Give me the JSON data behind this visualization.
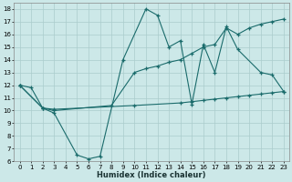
{
  "xlabel": "Humidex (Indice chaleur)",
  "bg_color": "#cce8e8",
  "grid_color": "#aacccc",
  "line_color": "#1a6b6b",
  "xlim": [
    -0.5,
    23.5
  ],
  "ylim": [
    6,
    18.5
  ],
  "xticks": [
    0,
    1,
    2,
    3,
    4,
    5,
    6,
    7,
    8,
    9,
    10,
    11,
    12,
    13,
    14,
    15,
    16,
    17,
    18,
    19,
    20,
    21,
    22,
    23
  ],
  "yticks": [
    6,
    7,
    8,
    9,
    10,
    11,
    12,
    13,
    14,
    15,
    16,
    17,
    18
  ],
  "line1_x": [
    0,
    1,
    2,
    3,
    5,
    6,
    7,
    9,
    11,
    12,
    13,
    14,
    15,
    16,
    17,
    18,
    19,
    21,
    22,
    23
  ],
  "line1_y": [
    12,
    11.8,
    10.2,
    9.8,
    6.5,
    6.2,
    6.4,
    14.0,
    18.0,
    17.5,
    15.0,
    15.5,
    10.5,
    15.2,
    13.0,
    16.6,
    14.8,
    13.0,
    12.8,
    11.5
  ],
  "line2_x": [
    0,
    2,
    3,
    8,
    10,
    11,
    12,
    13,
    14,
    15,
    16,
    17,
    18,
    19,
    20,
    21,
    22,
    23
  ],
  "line2_y": [
    12.0,
    10.2,
    10.0,
    10.4,
    13.0,
    13.3,
    13.5,
    13.8,
    14.0,
    14.5,
    15.0,
    15.2,
    16.5,
    16.0,
    16.5,
    16.8,
    17.0,
    17.2
  ],
  "line3_x": [
    0,
    2,
    3,
    10,
    14,
    15,
    16,
    17,
    18,
    19,
    20,
    21,
    22,
    23
  ],
  "line3_y": [
    12.0,
    10.2,
    10.1,
    10.4,
    10.6,
    10.7,
    10.8,
    10.9,
    11.0,
    11.1,
    11.2,
    11.3,
    11.4,
    11.5
  ]
}
